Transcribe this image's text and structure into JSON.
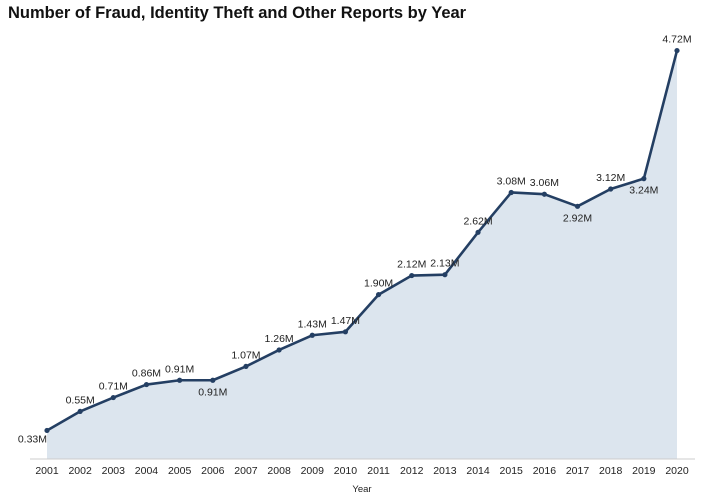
{
  "chart_data": {
    "type": "area",
    "title": "Number of Fraud, Identity Theft and Other Reports by Year",
    "xlabel": "Year",
    "ylabel": "",
    "ylim": [
      0,
      4.9
    ],
    "grid": false,
    "legend": "none",
    "colors": {
      "line": "#243f63",
      "fill": "#dce5ee",
      "axis": "#cccccc"
    },
    "x": [
      "2001",
      "2002",
      "2003",
      "2004",
      "2005",
      "2006",
      "2007",
      "2008",
      "2009",
      "2010",
      "2011",
      "2012",
      "2013",
      "2014",
      "2015",
      "2016",
      "2017",
      "2018",
      "2019",
      "2020"
    ],
    "series": [
      {
        "values": [
          0.33,
          0.55,
          0.71,
          0.86,
          0.91,
          0.91,
          1.07,
          1.26,
          1.43,
          1.47,
          1.9,
          2.12,
          2.13,
          2.62,
          3.08,
          3.06,
          2.92,
          3.12,
          3.24,
          4.72
        ],
        "labels": [
          "0.33M",
          "0.55M",
          "0.71M",
          "0.86M",
          "0.91M",
          "0.91M",
          "1.07M",
          "1.26M",
          "1.43M",
          "1.47M",
          "1.90M",
          "2.12M",
          "2.13M",
          "2.62M",
          "3.08M",
          "3.06M",
          "2.92M",
          "3.12M",
          "3.24M",
          "4.72M"
        ]
      }
    ]
  }
}
